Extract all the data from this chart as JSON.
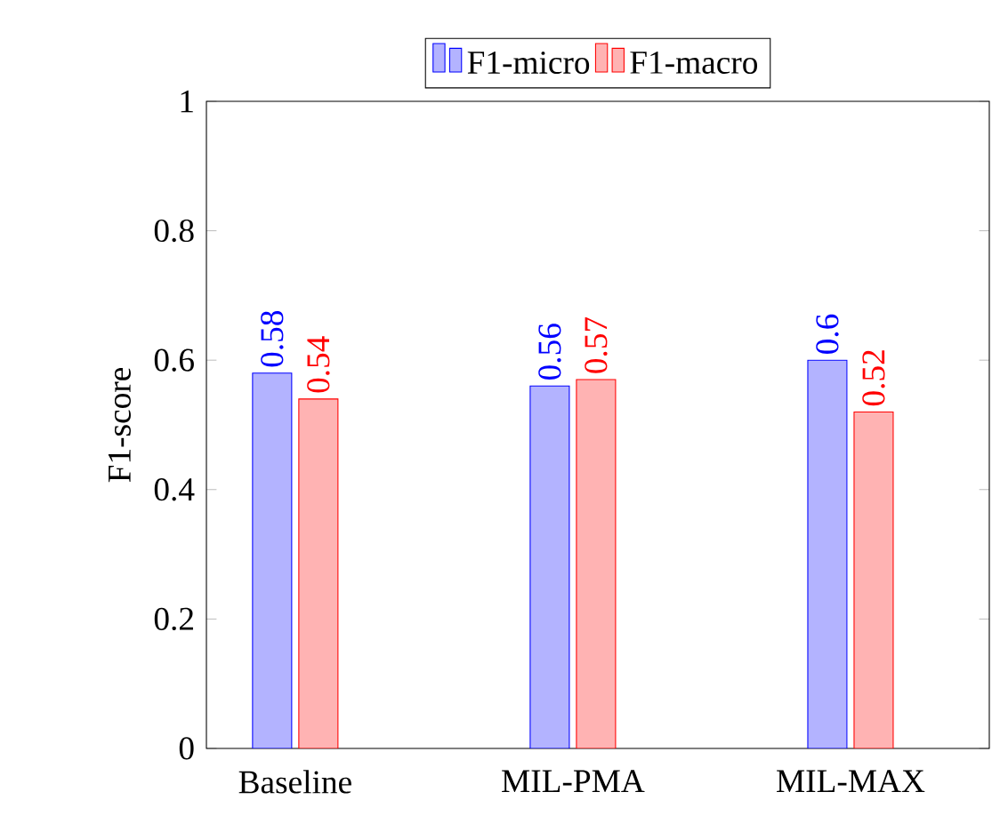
{
  "chart_data": {
    "type": "bar",
    "ylabel": "F1-score",
    "categories": [
      "Baseline",
      "MIL-PMA",
      "MIL-MAX"
    ],
    "series": [
      {
        "name": "F1-micro",
        "color": "#b3b3ff",
        "values": [
          0.58,
          0.56,
          0.6
        ]
      },
      {
        "name": "F1-macro",
        "color": "#ffb3b3",
        "values": [
          0.54,
          0.57,
          0.52
        ]
      }
    ],
    "ylim": [
      0,
      1
    ],
    "yticks": [
      0,
      0.2,
      0.4,
      0.6,
      0.8,
      1
    ],
    "data_labels": true,
    "legend": "top",
    "grid": false
  }
}
